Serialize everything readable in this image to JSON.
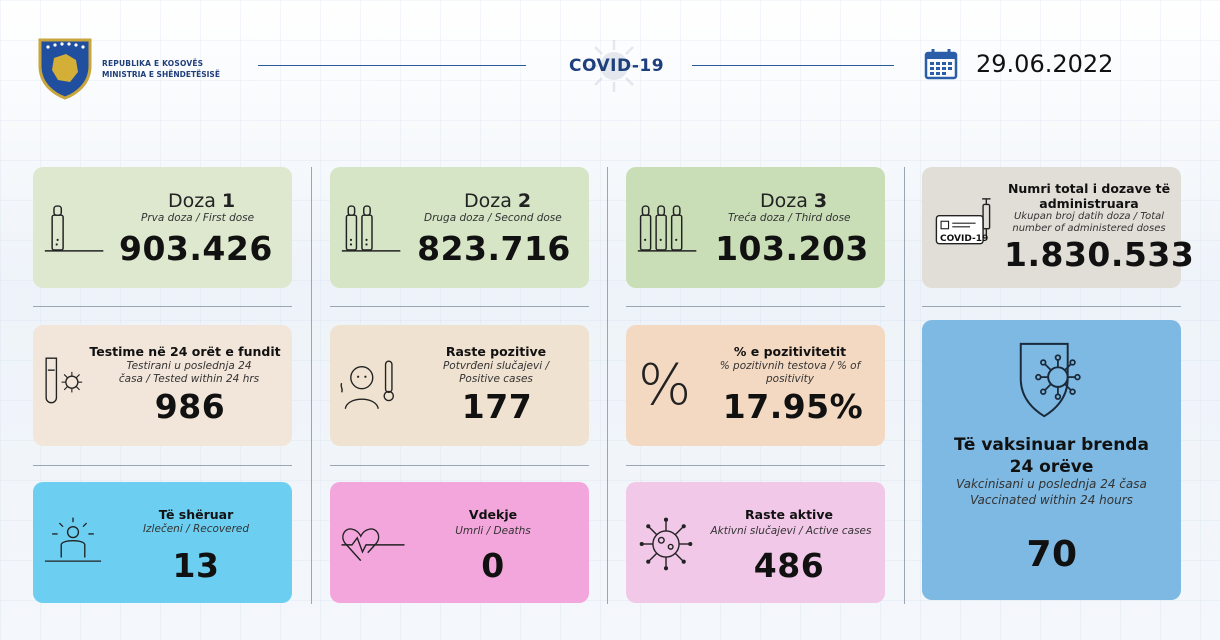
{
  "header": {
    "ministry_line1": "REPUBLIKA E KOSOVËS",
    "ministry_line2": "MINISTRIA E SHËNDETËSISË",
    "covid_title": "COVID-19",
    "date": "29.06.2022"
  },
  "doses": [
    {
      "title_word": "Doza",
      "title_num": "1",
      "subtitle": "Prva doza / First dose",
      "value": "903.426",
      "color": "#dde8cf"
    },
    {
      "title_word": "Doza",
      "title_num": "2",
      "subtitle": "Druga doza / Second dose",
      "value": "823.716",
      "color": "#d5e5c6"
    },
    {
      "title_word": "Doza",
      "title_num": "3",
      "subtitle": "Treća doza / Third dose",
      "value": "103.203",
      "color": "#c9deb7"
    }
  ],
  "total_doses": {
    "title": "Numri total i dozave të administruara",
    "subtitle": "Ukupan broj datih doza / Total number of administered doses",
    "value": "1.830.533",
    "badge": "COVID-19",
    "color": "#e1ded8"
  },
  "row2": [
    {
      "title": "Testime në 24 orët e fundit",
      "subtitle": "Testirani u poslednja 24 časa / Tested within 24 hrs",
      "value": "986",
      "color": "#f2e6da"
    },
    {
      "title": "Raste pozitive",
      "subtitle": "Potvrđeni slučajevi / Positive cases",
      "value": "177",
      "color": "#f0e2d0"
    },
    {
      "title": "% e pozitivitetit",
      "subtitle": "% pozitivnih testova / % of positivity",
      "value": "17.95%",
      "color": "#f3d9c2"
    }
  ],
  "row3": [
    {
      "title": "Të shëruar",
      "subtitle": "Izlečeni / Recovered",
      "value": "13",
      "color": "#6ccff2"
    },
    {
      "title": "Vdekje",
      "subtitle": "Umrli / Deaths",
      "value": "0",
      "color": "#f3a6dc"
    },
    {
      "title": "Raste aktive",
      "subtitle": "Aktivni slučajevi / Active cases",
      "value": "486",
      "color": "#f1c8e8"
    }
  ],
  "vaccinated": {
    "title": "Të vaksinuar brenda 24 orëve",
    "subtitle_line1": "Vakcinisani u poslednja 24 časa",
    "subtitle_line2": "Vaccinated within 24 hours",
    "value": "70",
    "color": "#7db9e3"
  },
  "icons": {
    "emblem": "kosovo-emblem-icon",
    "calendar": "calendar-icon",
    "vial": "vial-icon",
    "test_tube": "test-tube-virus-icon",
    "fever": "fever-person-icon",
    "percent": "percent-icon",
    "recovered": "recovered-person-icon",
    "heartbeat": "heartbeat-icon",
    "virus": "virus-icon",
    "shield": "shield-virus-icon",
    "syringe": "syringe-certificate-icon"
  }
}
